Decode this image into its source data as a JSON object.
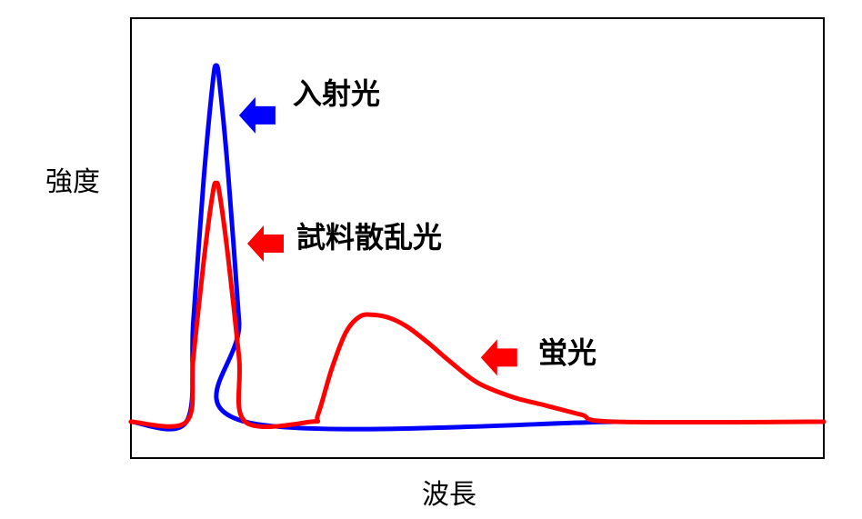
{
  "chart_data": {
    "type": "line",
    "title": "",
    "xlabel": "波長",
    "ylabel": "強度",
    "xlim": [
      0,
      100
    ],
    "ylim": [
      0,
      100
    ],
    "grid": false,
    "axis_ticks": false,
    "series": [
      {
        "key": "incident",
        "color": "#0000ff",
        "points": [
          [
            0,
            0
          ],
          [
            8,
            0
          ],
          [
            9,
            28
          ],
          [
            10.5,
            68
          ],
          [
            11.8,
            95
          ],
          [
            12.3,
            100
          ],
          [
            12.8,
            95
          ],
          [
            14.1,
            68
          ],
          [
            15.6,
            28
          ],
          [
            16.5,
            0
          ],
          [
            70,
            0
          ]
        ]
      },
      {
        "key": "sample",
        "color": "#ff0000",
        "points": [
          [
            0,
            0
          ],
          [
            8,
            0
          ],
          [
            9,
            18
          ],
          [
            10.5,
            45
          ],
          [
            11.8,
            64
          ],
          [
            12.3,
            67
          ],
          [
            12.8,
            64
          ],
          [
            14.1,
            45
          ],
          [
            15.6,
            18
          ],
          [
            16.5,
            0
          ],
          [
            26,
            0
          ],
          [
            27,
            2
          ],
          [
            29,
            15
          ],
          [
            31,
            25
          ],
          [
            33,
            29.5
          ],
          [
            35,
            30
          ],
          [
            37.5,
            29
          ],
          [
            40,
            26.5
          ],
          [
            43,
            22
          ],
          [
            46,
            17
          ],
          [
            50,
            11
          ],
          [
            55,
            7
          ],
          [
            60,
            4.5
          ],
          [
            65,
            2
          ],
          [
            70,
            0
          ],
          [
            100,
            0
          ]
        ]
      }
    ],
    "annotations": [
      {
        "key": "incident",
        "text": "入射光",
        "color": "#0000ff",
        "arrow_x": 15.6,
        "arrow_y": 86
      },
      {
        "key": "sample",
        "text": "試料散乱光",
        "color": "#ff0000",
        "arrow_x": 16.8,
        "arrow_y": 50
      },
      {
        "key": "fluorescence",
        "text": "蛍光",
        "color": "#ff0000",
        "arrow_x": 50.5,
        "arrow_y": 18
      }
    ]
  }
}
